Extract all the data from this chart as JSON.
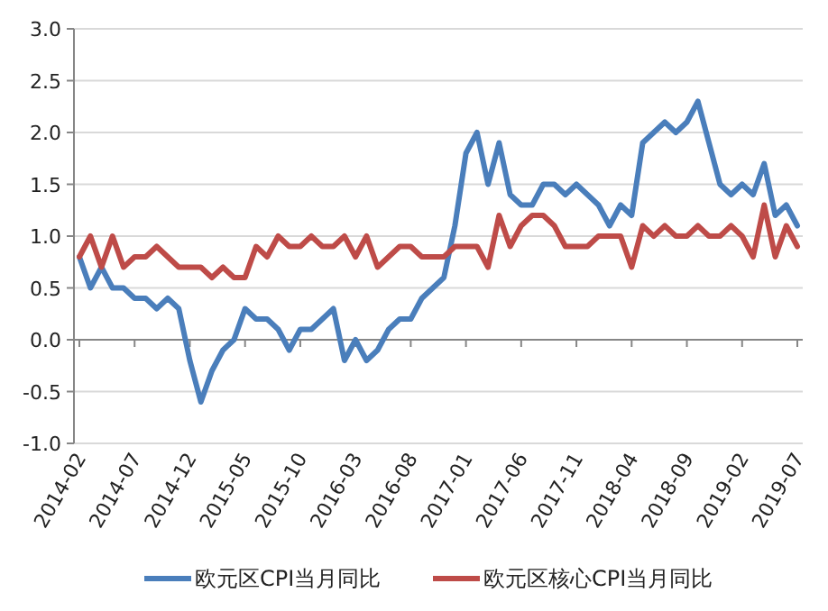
{
  "chart_data": {
    "type": "line",
    "categories": [
      "2014-02",
      null,
      null,
      null,
      null,
      "2014-07",
      null,
      null,
      null,
      null,
      "2014-12",
      null,
      null,
      null,
      null,
      "2015-05",
      null,
      null,
      null,
      null,
      "2015-10",
      null,
      null,
      null,
      null,
      "2016-03",
      null,
      null,
      null,
      null,
      "2016-08",
      null,
      null,
      null,
      null,
      "2017-01",
      null,
      null,
      null,
      null,
      "2017-06",
      null,
      null,
      null,
      null,
      "2017-11",
      null,
      null,
      null,
      null,
      "2018-04",
      null,
      null,
      null,
      null,
      "2018-09",
      null,
      null,
      null,
      null,
      "2019-02",
      null,
      null,
      null,
      null,
      "2019-07"
    ],
    "series": [
      {
        "name": "欧元区CPI当月同比",
        "color": "#4a7ebb",
        "values": [
          0.8,
          0.5,
          0.7,
          0.5,
          0.5,
          0.4,
          0.4,
          0.3,
          0.4,
          0.3,
          -0.2,
          -0.6,
          -0.3,
          -0.1,
          0.0,
          0.3,
          0.2,
          0.2,
          0.1,
          -0.1,
          0.1,
          0.1,
          0.2,
          0.3,
          -0.2,
          0.0,
          -0.2,
          -0.1,
          0.1,
          0.2,
          0.2,
          0.4,
          0.5,
          0.6,
          1.1,
          1.8,
          2.0,
          1.5,
          1.9,
          1.4,
          1.3,
          1.3,
          1.5,
          1.5,
          1.4,
          1.5,
          1.4,
          1.3,
          1.1,
          1.3,
          1.2,
          1.9,
          2.0,
          2.1,
          2.0,
          2.1,
          2.3,
          1.9,
          1.5,
          1.4,
          1.5,
          1.4,
          1.7,
          1.2,
          1.3,
          1.1
        ]
      },
      {
        "name": "欧元区核心CPI当月同比",
        "color": "#be4b48",
        "values": [
          0.8,
          1.0,
          0.7,
          1.0,
          0.7,
          0.8,
          0.8,
          0.9,
          0.8,
          0.7,
          0.7,
          0.7,
          0.6,
          0.7,
          0.6,
          0.6,
          0.9,
          0.8,
          1.0,
          0.9,
          0.9,
          1.0,
          0.9,
          0.9,
          1.0,
          0.8,
          1.0,
          0.7,
          0.8,
          0.9,
          0.9,
          0.8,
          0.8,
          0.8,
          0.9,
          0.9,
          0.9,
          0.7,
          1.2,
          0.9,
          1.1,
          1.2,
          1.2,
          1.1,
          0.9,
          0.9,
          0.9,
          1.0,
          1.0,
          1.0,
          0.7,
          1.1,
          1.0,
          1.1,
          1.0,
          1.0,
          1.1,
          1.0,
          1.0,
          1.1,
          1.0,
          0.8,
          1.3,
          0.8,
          1.1,
          0.9
        ]
      }
    ],
    "ylim": [
      -1.0,
      3.0
    ],
    "yticks": [
      {
        "value": -1.0,
        "label": "-1.0"
      },
      {
        "value": -0.5,
        "label": "-0.5"
      },
      {
        "value": 0.0,
        "label": "0.0"
      },
      {
        "value": 0.5,
        "label": "0.5"
      },
      {
        "value": 1.0,
        "label": "1.0"
      },
      {
        "value": 1.5,
        "label": "1.5"
      },
      {
        "value": 2.0,
        "label": "2.0"
      },
      {
        "value": 2.5,
        "label": "2.5"
      },
      {
        "value": 3.0,
        "label": "3.0"
      }
    ],
    "grid": "y",
    "legend": "bottom",
    "marker": "none",
    "line_style": "solid"
  }
}
